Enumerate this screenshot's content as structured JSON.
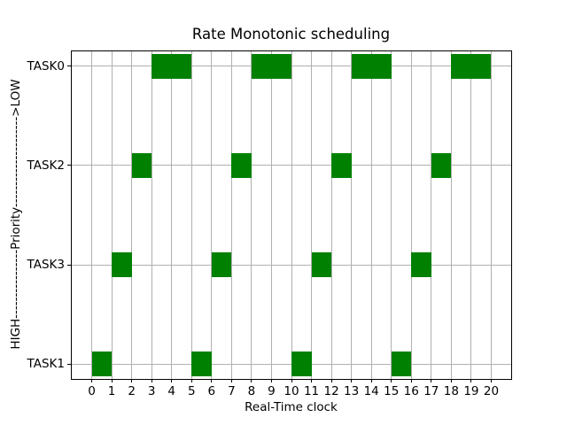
{
  "figure": {
    "background": "#ffffff"
  },
  "chart_data": {
    "type": "bar",
    "title": "Rate Monotonic scheduling",
    "xlabel": "Real-Time clock",
    "ylabel": "HIGH----------------Priority--------------------->LOW",
    "x_ticks": [
      0,
      1,
      2,
      3,
      4,
      5,
      6,
      7,
      8,
      9,
      10,
      11,
      12,
      13,
      14,
      15,
      16,
      17,
      18,
      19,
      20
    ],
    "xlim": [
      -1,
      21
    ],
    "ylim": [
      -0.15,
      3.15
    ],
    "grid": true,
    "legend": "none",
    "bar_color": "#008000",
    "grid_color": "#b0b0b0",
    "axis_color": "#000000",
    "text_color": "#000000",
    "bar_half_height": 0.125,
    "y_axis_categories": [
      {
        "label": "TASK0",
        "y": 3
      },
      {
        "label": "TASK2",
        "y": 2
      },
      {
        "label": "TASK3",
        "y": 1
      },
      {
        "label": "TASK1",
        "y": 0
      }
    ],
    "series": [
      {
        "name": "TASK0",
        "y": 3,
        "intervals": [
          [
            3,
            5
          ],
          [
            8,
            10
          ],
          [
            13,
            15
          ],
          [
            18,
            20
          ]
        ]
      },
      {
        "name": "TASK2",
        "y": 2,
        "intervals": [
          [
            2,
            3
          ],
          [
            7,
            8
          ],
          [
            12,
            13
          ],
          [
            17,
            18
          ]
        ]
      },
      {
        "name": "TASK3",
        "y": 1,
        "intervals": [
          [
            1,
            2
          ],
          [
            6,
            7
          ],
          [
            11,
            12
          ],
          [
            16,
            17
          ]
        ]
      },
      {
        "name": "TASK1",
        "y": 0,
        "intervals": [
          [
            0,
            1
          ],
          [
            5,
            6
          ],
          [
            10,
            11
          ],
          [
            15,
            16
          ]
        ]
      }
    ]
  }
}
